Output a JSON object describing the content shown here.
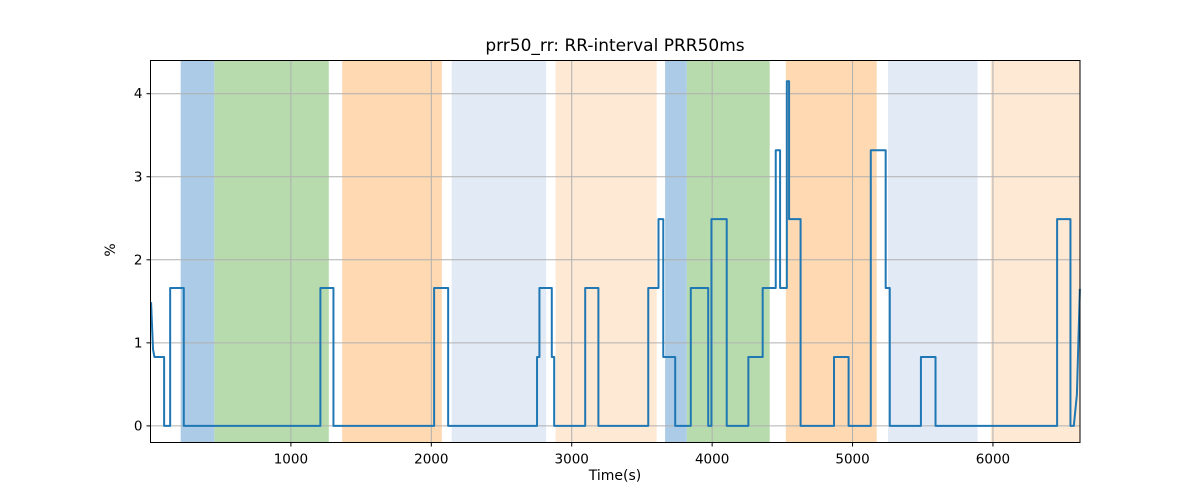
{
  "figure": {
    "background": "#ffffff"
  },
  "chart_data": {
    "type": "line",
    "title": "prr50_rr: RR-interval PRR50ms",
    "xlabel": "Time(s)",
    "ylabel": "%",
    "xlim": [
      0,
      6620
    ],
    "ylim": [
      -0.2,
      4.4
    ],
    "x_ticks": [
      1000,
      2000,
      3000,
      4000,
      5000,
      6000
    ],
    "y_ticks": [
      0,
      1,
      2,
      3,
      4
    ],
    "grid": true,
    "grid_color": "#b0b0b0",
    "spine_color": "#000000",
    "tick_label_color": "#000000",
    "legend": "none",
    "series": [
      {
        "name": "prr50_rr",
        "color": "#1f77b4",
        "width": 2,
        "points": [
          [
            4,
            1.49
          ],
          [
            18,
            0.92
          ],
          [
            28,
            0.83
          ],
          [
            97,
            0.83
          ],
          [
            97,
            0
          ],
          [
            140,
            0
          ],
          [
            140,
            1.66
          ],
          [
            237,
            1.66
          ],
          [
            237,
            0
          ],
          [
            1210,
            0
          ],
          [
            1210,
            1.66
          ],
          [
            1303,
            1.66
          ],
          [
            1303,
            0
          ],
          [
            2020,
            0
          ],
          [
            2020,
            1.66
          ],
          [
            2120,
            1.66
          ],
          [
            2120,
            0
          ],
          [
            2753,
            0
          ],
          [
            2753,
            0.83
          ],
          [
            2770,
            0.83
          ],
          [
            2770,
            1.66
          ],
          [
            2858,
            1.66
          ],
          [
            2858,
            0.83
          ],
          [
            2875,
            0.83
          ],
          [
            2875,
            0
          ],
          [
            3096,
            0
          ],
          [
            3096,
            1.66
          ],
          [
            3190,
            1.66
          ],
          [
            3190,
            0
          ],
          [
            3545,
            0
          ],
          [
            3545,
            1.66
          ],
          [
            3618,
            1.66
          ],
          [
            3618,
            2.49
          ],
          [
            3652,
            2.49
          ],
          [
            3652,
            0.83
          ],
          [
            3737,
            0.83
          ],
          [
            3737,
            0
          ],
          [
            3848,
            0
          ],
          [
            3848,
            1.66
          ],
          [
            3972,
            1.66
          ],
          [
            3972,
            0
          ],
          [
            3995,
            0
          ],
          [
            3995,
            2.49
          ],
          [
            4104,
            2.49
          ],
          [
            4104,
            0
          ],
          [
            4258,
            0
          ],
          [
            4258,
            0.83
          ],
          [
            4360,
            0.83
          ],
          [
            4360,
            1.66
          ],
          [
            4453,
            1.66
          ],
          [
            4453,
            3.32
          ],
          [
            4484,
            3.32
          ],
          [
            4484,
            1.66
          ],
          [
            4532,
            1.66
          ],
          [
            4532,
            4.15
          ],
          [
            4548,
            4.15
          ],
          [
            4548,
            2.49
          ],
          [
            4630,
            2.49
          ],
          [
            4630,
            0
          ],
          [
            4868,
            0
          ],
          [
            4868,
            0.83
          ],
          [
            4972,
            0.83
          ],
          [
            4972,
            0
          ],
          [
            5130,
            0
          ],
          [
            5130,
            3.32
          ],
          [
            5236,
            3.32
          ],
          [
            5236,
            1.66
          ],
          [
            5265,
            1.66
          ],
          [
            5265,
            0
          ],
          [
            5487,
            0
          ],
          [
            5487,
            0.83
          ],
          [
            5591,
            0.83
          ],
          [
            5591,
            0
          ],
          [
            6457,
            0
          ],
          [
            6457,
            2.49
          ],
          [
            6552,
            2.49
          ],
          [
            6552,
            0
          ],
          [
            6576,
            0
          ],
          [
            6598,
            0.38
          ],
          [
            6619,
            1.65
          ]
        ]
      }
    ],
    "bands": [
      {
        "type": "blue",
        "start": 215,
        "end": 455,
        "color": "#abcbe6"
      },
      {
        "type": "green",
        "start": 455,
        "end": 1270,
        "color": "#b7dbac"
      },
      {
        "type": "orange",
        "start": 1365,
        "end": 2075,
        "color": "#fed9b2"
      },
      {
        "type": "lavender",
        "start": 2145,
        "end": 2818,
        "color": "#e2eaf6"
      },
      {
        "type": "peach",
        "start": 2885,
        "end": 3605,
        "color": "#fee9d4"
      },
      {
        "type": "blue",
        "start": 3665,
        "end": 3820,
        "color": "#abcbe6"
      },
      {
        "type": "green",
        "start": 3820,
        "end": 4410,
        "color": "#b7dbac"
      },
      {
        "type": "orange",
        "start": 4525,
        "end": 5172,
        "color": "#fed9b2"
      },
      {
        "type": "lavender",
        "start": 5253,
        "end": 5890,
        "color": "#e2eaf6"
      },
      {
        "type": "peach",
        "start": 5985,
        "end": 6620,
        "color": "#fee9d4"
      }
    ]
  }
}
